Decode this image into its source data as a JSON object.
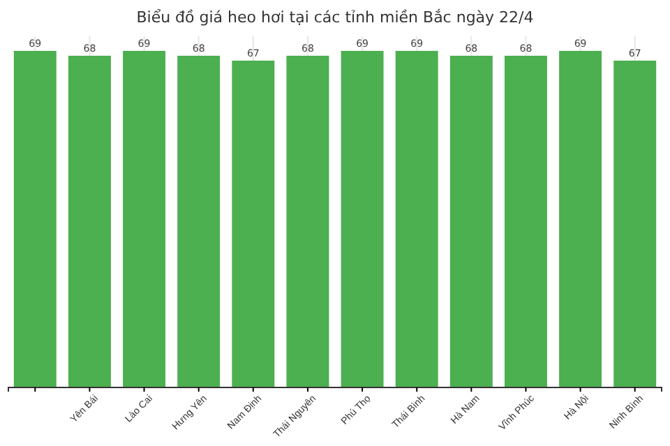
{
  "chart_data": {
    "type": "bar",
    "title": "Biểu đồ giá heo hơi tại các tỉnh miền Bắc ngày 22/4",
    "categories": [
      null,
      "Yên Bái",
      "Lào Cai",
      "Hưng Yên",
      "Nam Định",
      "Thái Nguyên",
      "Phú Thọ",
      "Thái Bình",
      "Hà Nam",
      "Vĩnh Phúc",
      "Hà Nội",
      "Ninh Bình"
    ],
    "values": [
      69,
      68,
      69,
      68,
      67,
      68,
      69,
      69,
      68,
      68,
      69,
      67
    ],
    "color": "#4caf50",
    "ylim": [
      0,
      72
    ],
    "grid": "x",
    "data_labels": true,
    "tick_labels": "x"
  }
}
